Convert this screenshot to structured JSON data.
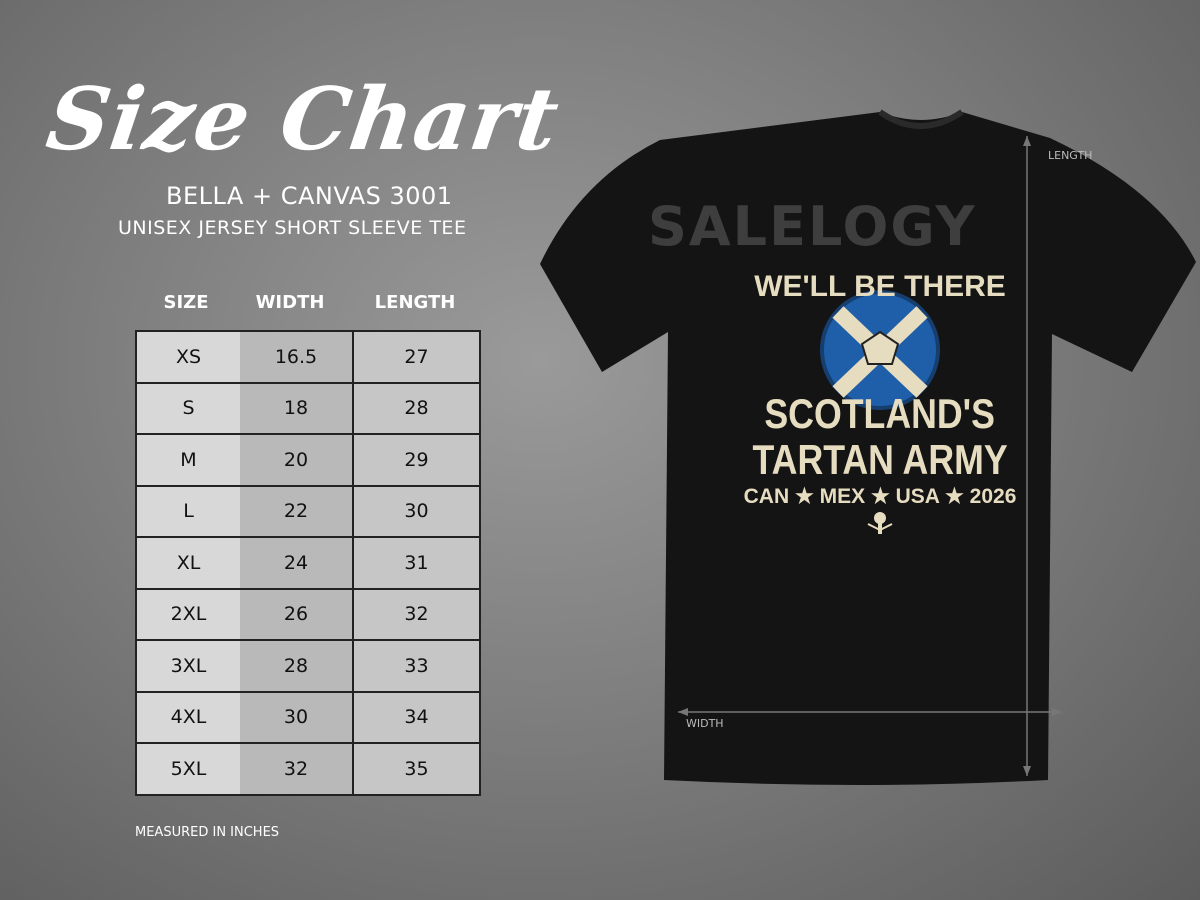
{
  "title": "Size Chart",
  "brand": "BELLA + CANVAS 3001",
  "model": "UNISEX JERSEY SHORT SLEEVE TEE",
  "table": {
    "headers": [
      "SIZE",
      "WIDTH",
      "LENGTH"
    ],
    "rows": [
      [
        "XS",
        "16.5",
        "27"
      ],
      [
        "S",
        "18",
        "28"
      ],
      [
        "M",
        "20",
        "29"
      ],
      [
        "L",
        "22",
        "30"
      ],
      [
        "XL",
        "24",
        "31"
      ],
      [
        "2XL",
        "26",
        "32"
      ],
      [
        "3XL",
        "28",
        "33"
      ],
      [
        "4XL",
        "30",
        "34"
      ],
      [
        "5XL",
        "32",
        "35"
      ]
    ]
  },
  "note": "MEASURED IN INCHES",
  "shirt": {
    "watermark": "SALELOGY",
    "design": {
      "line1": "WE'LL BE THERE",
      "line2": "SCOTLAND'S",
      "line3": "TARTAN ARMY",
      "line4": "CAN ★ MEX ★ USA ★ 2026"
    },
    "length_label": "LENGTH",
    "width_label": "WIDTH",
    "colors": {
      "shirt": "#141414",
      "ink": "#e6dcc0",
      "flag_blue": "#1f5ea8"
    }
  }
}
